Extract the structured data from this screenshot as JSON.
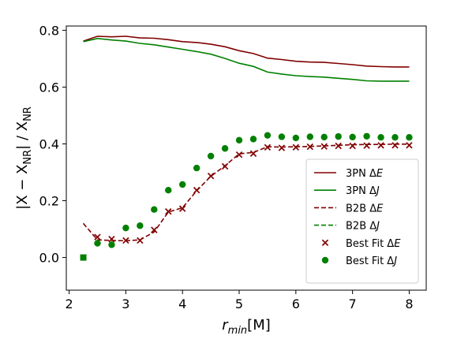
{
  "chart_data": {
    "type": "line",
    "xlabel": "r_min[M]",
    "xlabel_parts": {
      "main": "r",
      "sub": "min",
      "unit": "[M]"
    },
    "ylabel": "|X − X_NR| / X_NR",
    "ylabel_parts": {
      "open": "|X − X",
      "sub1": "NR",
      "mid": "| / X",
      "sub2": "NR"
    },
    "xlim": [
      1.95,
      8.3
    ],
    "ylim": [
      -0.115,
      0.815
    ],
    "xticks": [
      2,
      3,
      4,
      5,
      6,
      7,
      8
    ],
    "yticks": [
      0.0,
      0.2,
      0.4,
      0.6,
      0.8
    ],
    "ytick_labels": [
      "0.0",
      "0.2",
      "0.4",
      "0.6",
      "0.8"
    ],
    "grid": false,
    "legend_location": "lower right",
    "series": [
      {
        "name": "3PN ΔE",
        "legend_main": "3PN Δ",
        "legend_var": "E",
        "kind": "line",
        "style": "solid",
        "color": "#800000",
        "x": [
          2.25,
          2.5,
          2.75,
          3.0,
          3.25,
          3.5,
          3.75,
          4.0,
          4.25,
          4.5,
          4.75,
          5.0,
          5.25,
          5.5,
          5.75,
          6.0,
          6.25,
          6.5,
          6.75,
          7.0,
          7.25,
          7.5,
          7.75,
          8.0
        ],
        "y": [
          0.762,
          0.779,
          0.777,
          0.779,
          0.773,
          0.772,
          0.767,
          0.76,
          0.757,
          0.751,
          0.742,
          0.728,
          0.718,
          0.702,
          0.697,
          0.691,
          0.688,
          0.687,
          0.683,
          0.679,
          0.674,
          0.672,
          0.671,
          0.671
        ]
      },
      {
        "name": "3PN ΔJ",
        "legend_main": "3PN Δ",
        "legend_var": "J",
        "kind": "line",
        "style": "solid",
        "color": "#008000",
        "x": [
          2.25,
          2.5,
          2.75,
          3.0,
          3.25,
          3.5,
          3.75,
          4.0,
          4.25,
          4.5,
          4.75,
          5.0,
          5.25,
          5.5,
          5.75,
          6.0,
          6.25,
          6.5,
          6.75,
          7.0,
          7.25,
          7.5,
          7.75,
          8.0
        ],
        "y": [
          0.76,
          0.771,
          0.766,
          0.762,
          0.754,
          0.749,
          0.741,
          0.733,
          0.725,
          0.716,
          0.701,
          0.684,
          0.673,
          0.653,
          0.646,
          0.64,
          0.637,
          0.635,
          0.631,
          0.627,
          0.622,
          0.621,
          0.621,
          0.621
        ]
      },
      {
        "name": "B2B ΔE",
        "legend_main": "B2B Δ",
        "legend_var": "E",
        "kind": "line",
        "style": "dashed",
        "color": "#800000",
        "x": [
          2.25,
          2.5,
          2.75,
          3.0,
          3.25,
          3.5,
          3.75,
          4.0,
          4.25,
          4.5,
          4.75,
          5.0,
          5.25,
          5.5,
          5.75,
          6.0,
          6.25,
          6.5,
          6.75,
          7.0,
          7.25,
          7.5,
          7.75,
          8.0
        ],
        "y": [
          0.12,
          0.062,
          0.06,
          0.059,
          0.062,
          0.09,
          0.16,
          0.175,
          0.235,
          0.286,
          0.323,
          0.365,
          0.37,
          0.39,
          0.389,
          0.39,
          0.391,
          0.393,
          0.395,
          0.397,
          0.398,
          0.398,
          0.399,
          0.399
        ]
      },
      {
        "name": "B2B ΔJ",
        "legend_main": "B2B Δ",
        "legend_var": "J",
        "kind": "line",
        "style": "dashed",
        "color": "#008000",
        "x": [
          2.25
        ],
        "y": [
          0.0
        ]
      },
      {
        "name": "Best Fit ΔE",
        "legend_main": "Best Fit Δ",
        "legend_var": "E",
        "kind": "marker",
        "marker": "x",
        "color": "#800000",
        "x": [
          2.5,
          2.75,
          3.0,
          3.25,
          3.5,
          3.75,
          4.0,
          4.25,
          4.5,
          4.75,
          5.0,
          5.25,
          5.5,
          5.75,
          6.0,
          6.25,
          6.5,
          6.75,
          7.0,
          7.25,
          7.5,
          7.75,
          8.0
        ],
        "y": [
          0.072,
          0.065,
          0.06,
          0.06,
          0.097,
          0.162,
          0.172,
          0.237,
          0.287,
          0.321,
          0.362,
          0.366,
          0.388,
          0.386,
          0.388,
          0.39,
          0.391,
          0.393,
          0.393,
          0.394,
          0.395,
          0.395,
          0.395
        ]
      },
      {
        "name": "Best Fit ΔJ",
        "legend_main": "Best Fit Δ",
        "legend_var": "J",
        "kind": "marker",
        "marker": "o",
        "color": "#008000",
        "x": [
          2.5,
          2.75,
          3.0,
          3.25,
          3.5,
          3.75,
          4.0,
          4.25,
          4.5,
          4.75,
          5.0,
          5.25,
          5.5,
          5.75,
          6.0,
          6.25,
          6.5,
          6.75,
          7.0,
          7.25,
          7.5,
          7.75,
          8.0
        ],
        "y": [
          0.05,
          0.045,
          0.104,
          0.112,
          0.169,
          0.237,
          0.257,
          0.315,
          0.357,
          0.384,
          0.413,
          0.417,
          0.43,
          0.425,
          0.421,
          0.425,
          0.424,
          0.426,
          0.424,
          0.427,
          0.423,
          0.423,
          0.423
        ]
      }
    ]
  }
}
